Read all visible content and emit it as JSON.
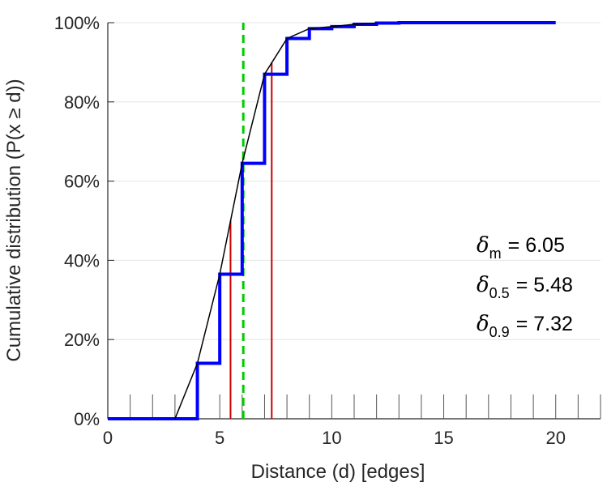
{
  "chart_data": {
    "type": "line",
    "xlabel": "Distance (d) [edges]",
    "ylabel": "Cumulative distribution (P(x ≥ d))",
    "xlim": [
      0,
      22
    ],
    "ylim": [
      0,
      100
    ],
    "x_ticks": [
      0,
      5,
      10,
      15,
      20
    ],
    "x_tick_labels": [
      "0",
      "5",
      "10",
      "15",
      "20"
    ],
    "y_ticks": [
      0,
      20,
      40,
      60,
      80,
      100
    ],
    "y_tick_labels": [
      "0%",
      "20%",
      "40%",
      "60%",
      "80%",
      "100%"
    ],
    "x_minor_ticks": [
      1,
      2,
      3,
      4,
      5,
      6,
      7,
      8,
      9,
      10,
      11,
      12,
      13,
      14,
      15,
      16,
      17,
      18,
      19,
      20,
      21,
      22
    ],
    "grid": "y-major",
    "series": [
      {
        "style": "step",
        "color": "#0000ff",
        "x": [
          0,
          1,
          2,
          3,
          4,
          5,
          6,
          7,
          8,
          9,
          10,
          11,
          12,
          13,
          14,
          15,
          16,
          17,
          18,
          19,
          20
        ],
        "values": [
          0,
          0,
          0,
          0,
          14,
          36.5,
          64.5,
          87,
          96,
          98.5,
          99,
          99.6,
          99.9,
          100,
          100,
          100,
          100,
          100,
          100,
          100,
          100
        ]
      },
      {
        "style": "line",
        "color": "#000000",
        "x": [
          3,
          4,
          5,
          6,
          7,
          8,
          9,
          10,
          11,
          12
        ],
        "values": [
          0,
          14,
          36.5,
          64.5,
          87,
          96,
          98.5,
          99,
          99.6,
          99.9
        ]
      }
    ],
    "reference_lines": [
      {
        "style": "dashed",
        "color": "#00cc00",
        "x": 6.05,
        "y_from": 0,
        "y_to": 100
      },
      {
        "style": "solid",
        "color": "#cc0000",
        "x": 5.48,
        "y_from": 0,
        "y_to": 50
      },
      {
        "style": "solid",
        "color": "#cc0000",
        "x": 7.32,
        "y_from": 0,
        "y_to": 90
      }
    ],
    "annotations": [
      {
        "symbol": "δ",
        "subscript": "m",
        "text": "= 6.05"
      },
      {
        "symbol": "δ",
        "subscript": "0.5",
        "text": "= 5.48"
      },
      {
        "symbol": "δ",
        "subscript": "0.9",
        "text": "= 7.32"
      }
    ]
  }
}
